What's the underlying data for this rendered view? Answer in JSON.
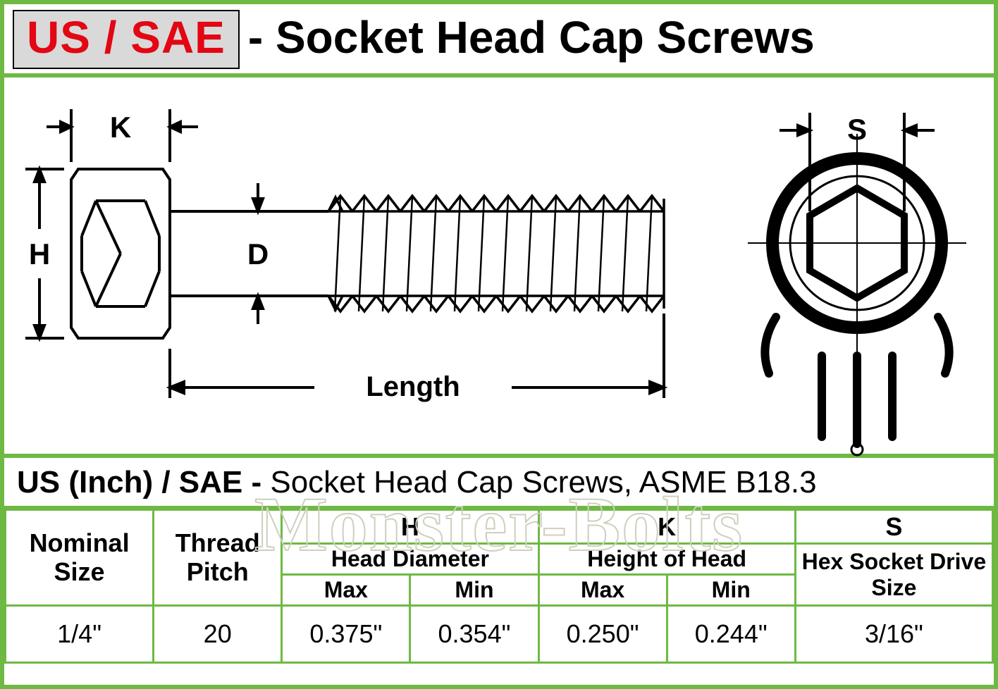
{
  "colors": {
    "border_green": "#6eb943",
    "title_red": "#e30613",
    "title_bg": "#d9d9d9",
    "black": "#000000",
    "white": "#ffffff",
    "watermark_stroke": "#cfcfbf"
  },
  "title": {
    "highlighted": "US / SAE",
    "rest": "- Socket Head Cap Screws"
  },
  "diagram": {
    "labels": {
      "K": "K",
      "H": "H",
      "D": "D",
      "Length": "Length",
      "S": "S"
    },
    "font_size": 42,
    "label_weight": "bold",
    "stroke_width": 4,
    "thread_count": 14
  },
  "table_title": {
    "prefix_bold": "US (Inch) / SAE - ",
    "rest": "Socket Head Cap Screws, ASME B18.3"
  },
  "table": {
    "col_widths_pct": [
      15,
      13,
      13,
      13,
      13,
      13,
      20
    ],
    "header": {
      "nominal": "Nominal Size",
      "pitch": "Thread Pitch",
      "H_letter": "H",
      "H_desc": "Head Diameter",
      "K_letter": "K",
      "K_desc": "Height of Head",
      "S_letter": "S",
      "S_desc": "Hex Socket Drive Size",
      "max": "Max",
      "min": "Min"
    },
    "row": {
      "nominal": "1/4\"",
      "pitch": "20",
      "h_max": "0.375\"",
      "h_min": "0.354\"",
      "k_max": "0.250\"",
      "k_min": "0.244\"",
      "s": "3/16\""
    }
  },
  "watermark": "Monster-Bolts"
}
